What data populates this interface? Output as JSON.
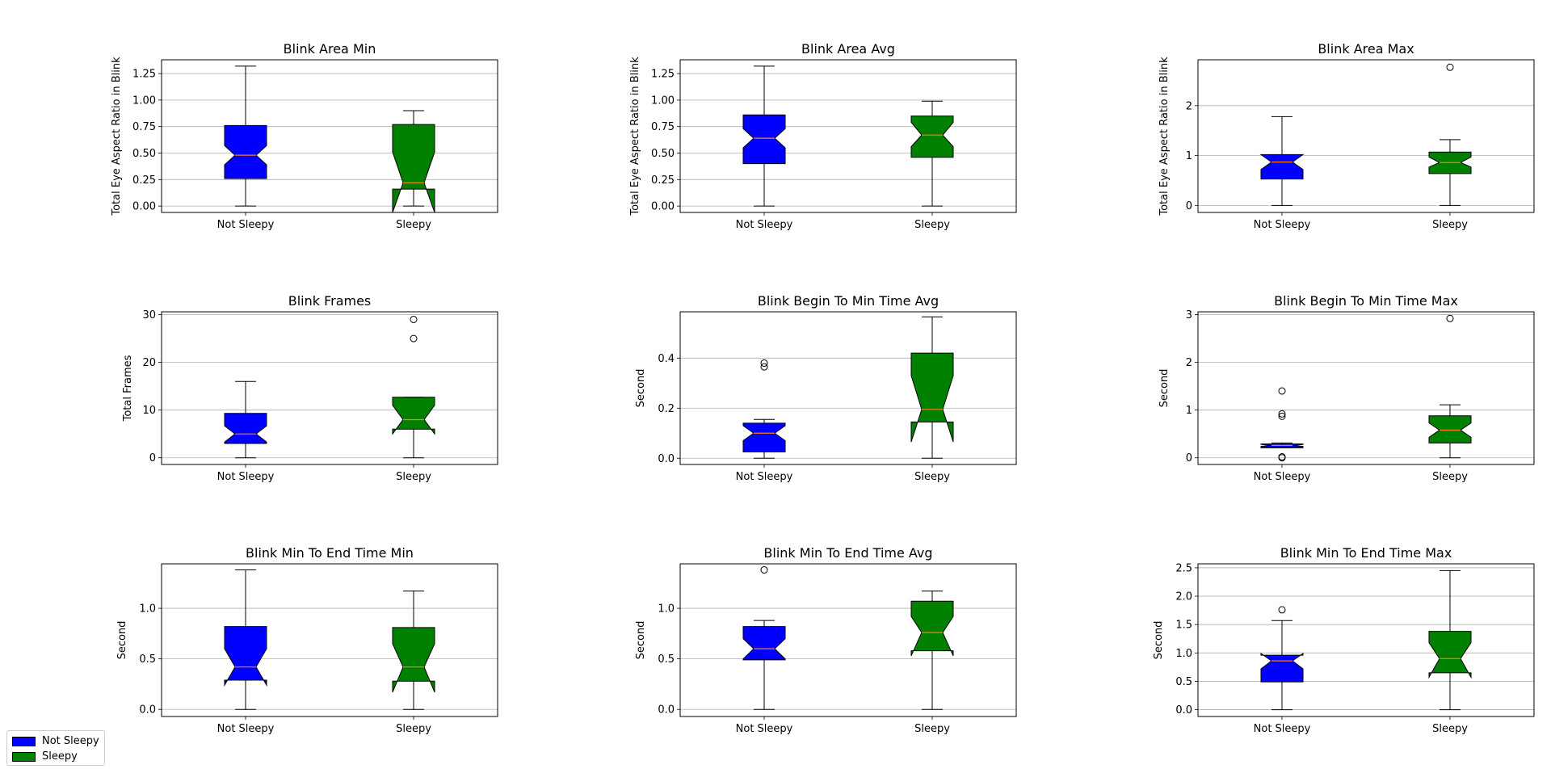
{
  "colors": {
    "not_sleepy": "#0000ff",
    "sleepy": "#008000",
    "median": "#ff7f0e",
    "grid": "#b0b0b0"
  },
  "legend": {
    "items": [
      {
        "label": "Not Sleepy",
        "color": "#0000ff"
      },
      {
        "label": "Sleepy",
        "color": "#008000"
      }
    ],
    "placement": "bottom-left"
  },
  "chart_data": [
    {
      "type": "boxplot",
      "title": "Blink Area Min",
      "ylabel": "Total Eye Aspect Ratio in Blink",
      "categories": [
        "Not Sleepy",
        "Sleepy"
      ],
      "ylim": [
        -0.06,
        1.38
      ],
      "yticks": [
        0,
        0.25,
        0.5,
        0.75,
        1.0,
        1.25
      ],
      "ytick_labels": [
        "0.00",
        "0.25",
        "0.50",
        "0.75",
        "1.00",
        "1.25"
      ],
      "grid": "y",
      "boxes": [
        {
          "whislo": 0.0,
          "q1": 0.26,
          "med": 0.48,
          "q3": 0.76,
          "whishi": 1.32,
          "notch_lo": 0.39,
          "notch_hi": 0.57,
          "fliers": []
        },
        {
          "whislo": 0.0,
          "q1": 0.16,
          "med": 0.22,
          "q3": 0.77,
          "whishi": 0.9,
          "notch_lo": -0.06,
          "notch_hi": 0.51,
          "fliers": []
        }
      ]
    },
    {
      "type": "boxplot",
      "title": "Blink Area Avg",
      "ylabel": "Total Eye Aspect Ratio in Blink",
      "categories": [
        "Not Sleepy",
        "Sleepy"
      ],
      "ylim": [
        -0.06,
        1.38
      ],
      "yticks": [
        0,
        0.25,
        0.5,
        0.75,
        1.0,
        1.25
      ],
      "ytick_labels": [
        "0.00",
        "0.25",
        "0.50",
        "0.75",
        "1.00",
        "1.25"
      ],
      "grid": "y",
      "boxes": [
        {
          "whislo": 0.0,
          "q1": 0.4,
          "med": 0.64,
          "q3": 0.86,
          "whishi": 1.32,
          "notch_lo": 0.55,
          "notch_hi": 0.73,
          "fliers": []
        },
        {
          "whislo": 0.0,
          "q1": 0.46,
          "med": 0.67,
          "q3": 0.85,
          "whishi": 0.99,
          "notch_lo": 0.56,
          "notch_hi": 0.79,
          "fliers": []
        }
      ]
    },
    {
      "type": "boxplot",
      "title": "Blink Area Max",
      "ylabel": "Total Eye Aspect Ratio in Blink",
      "categories": [
        "Not Sleepy",
        "Sleepy"
      ],
      "ylim": [
        -0.14,
        2.92
      ],
      "yticks": [
        0,
        1,
        2
      ],
      "ytick_labels": [
        "0",
        "1",
        "2"
      ],
      "grid": "y",
      "boxes": [
        {
          "whislo": 0.0,
          "q1": 0.53,
          "med": 0.87,
          "q3": 1.02,
          "whishi": 1.78,
          "notch_lo": 0.72,
          "notch_hi": 1.02,
          "fliers": []
        },
        {
          "whislo": 0.0,
          "q1": 0.64,
          "med": 0.86,
          "q3": 1.07,
          "whishi": 1.32,
          "notch_lo": 0.77,
          "notch_hi": 0.97,
          "fliers": [
            2.77
          ]
        }
      ]
    },
    {
      "type": "boxplot",
      "title": "Blink Frames",
      "ylabel": "Total Frames",
      "categories": [
        "Not Sleepy",
        "Sleepy"
      ],
      "ylim": [
        -1.4,
        30.6
      ],
      "yticks": [
        0,
        10,
        20,
        30
      ],
      "ytick_labels": [
        "0",
        "10",
        "20",
        "30"
      ],
      "grid": "y",
      "boxes": [
        {
          "whislo": 0,
          "q1": 3,
          "med": 5,
          "q3": 9.3,
          "whishi": 16,
          "notch_lo": 3.3,
          "notch_hi": 6.7,
          "fliers": []
        },
        {
          "whislo": 0,
          "q1": 6,
          "med": 8,
          "q3": 12.7,
          "whishi": 12.7,
          "notch_lo": 5,
          "notch_hi": 11,
          "fliers": [
            25,
            29
          ]
        }
      ]
    },
    {
      "type": "boxplot",
      "title": "Blink Begin To Min Time Avg",
      "ylabel": "Second",
      "categories": [
        "Not Sleepy",
        "Sleepy"
      ],
      "ylim": [
        -0.025,
        0.585
      ],
      "yticks": [
        0.0,
        0.2,
        0.4
      ],
      "ytick_labels": [
        "0.0",
        "0.2",
        "0.4"
      ],
      "grid": "y",
      "boxes": [
        {
          "whislo": 0.0,
          "q1": 0.025,
          "med": 0.1,
          "q3": 0.14,
          "whishi": 0.155,
          "notch_lo": 0.07,
          "notch_hi": 0.13,
          "fliers": [
            0.365,
            0.38
          ]
        },
        {
          "whislo": 0.0,
          "q1": 0.145,
          "med": 0.195,
          "q3": 0.42,
          "whishi": 0.565,
          "notch_lo": 0.065,
          "notch_hi": 0.33,
          "fliers": []
        }
      ]
    },
    {
      "type": "boxplot",
      "title": "Blink Begin To Min Time Max",
      "ylabel": "Second",
      "categories": [
        "Not Sleepy",
        "Sleepy"
      ],
      "ylim": [
        -0.14,
        3.06
      ],
      "yticks": [
        0,
        1,
        2,
        3
      ],
      "ytick_labels": [
        "0",
        "1",
        "2",
        "3"
      ],
      "grid": "y",
      "boxes": [
        {
          "whislo": 0.21,
          "q1": 0.21,
          "med": 0.26,
          "q3": 0.29,
          "whishi": 0.31,
          "notch_lo": 0.24,
          "notch_hi": 0.28,
          "fliers": [
            0.0,
            0.02,
            0.87,
            0.92,
            1.4
          ]
        },
        {
          "whislo": 0.0,
          "q1": 0.31,
          "med": 0.58,
          "q3": 0.88,
          "whishi": 1.11,
          "notch_lo": 0.43,
          "notch_hi": 0.73,
          "fliers": [
            2.92
          ]
        }
      ]
    },
    {
      "type": "boxplot",
      "title": "Blink Min To End Time Min",
      "ylabel": "Second",
      "categories": [
        "Not Sleepy",
        "Sleepy"
      ],
      "ylim": [
        -0.07,
        1.44
      ],
      "yticks": [
        0.0,
        0.5,
        1.0
      ],
      "ytick_labels": [
        "0.0",
        "0.5",
        "1.0"
      ],
      "grid": "y",
      "boxes": [
        {
          "whislo": 0.0,
          "q1": 0.29,
          "med": 0.42,
          "q3": 0.82,
          "whishi": 1.38,
          "notch_lo": 0.24,
          "notch_hi": 0.6,
          "fliers": []
        },
        {
          "whislo": 0.0,
          "q1": 0.28,
          "med": 0.42,
          "q3": 0.81,
          "whishi": 1.17,
          "notch_lo": 0.17,
          "notch_hi": 0.65,
          "fliers": []
        }
      ]
    },
    {
      "type": "boxplot",
      "title": "Blink Min To End Time Avg",
      "ylabel": "Second",
      "categories": [
        "Not Sleepy",
        "Sleepy"
      ],
      "ylim": [
        -0.07,
        1.44
      ],
      "yticks": [
        0.0,
        0.5,
        1.0
      ],
      "ytick_labels": [
        "0.0",
        "0.5",
        "1.0"
      ],
      "grid": "y",
      "boxes": [
        {
          "whislo": 0.0,
          "q1": 0.49,
          "med": 0.6,
          "q3": 0.82,
          "whishi": 0.88,
          "notch_lo": 0.5,
          "notch_hi": 0.7,
          "fliers": [
            1.38
          ]
        },
        {
          "whislo": 0.0,
          "q1": 0.58,
          "med": 0.76,
          "q3": 1.07,
          "whishi": 1.17,
          "notch_lo": 0.53,
          "notch_hi": 0.92,
          "fliers": []
        }
      ]
    },
    {
      "type": "boxplot",
      "title": "Blink Min To End Time Max",
      "ylabel": "Second",
      "categories": [
        "Not Sleepy",
        "Sleepy"
      ],
      "ylim": [
        -0.12,
        2.57
      ],
      "yticks": [
        0.0,
        0.5,
        1.0,
        1.5,
        2.0,
        2.5
      ],
      "ytick_labels": [
        "0.0",
        "0.5",
        "1.0",
        "1.5",
        "2.0",
        "2.5"
      ],
      "grid": "y",
      "boxes": [
        {
          "whislo": 0.0,
          "q1": 0.49,
          "med": 0.86,
          "q3": 0.96,
          "whishi": 1.57,
          "notch_lo": 0.72,
          "notch_hi": 0.99,
          "fliers": [
            1.76
          ]
        },
        {
          "whislo": 0.0,
          "q1": 0.65,
          "med": 0.9,
          "q3": 1.38,
          "whishi": 2.45,
          "notch_lo": 0.57,
          "notch_hi": 1.18,
          "fliers": []
        }
      ]
    }
  ]
}
